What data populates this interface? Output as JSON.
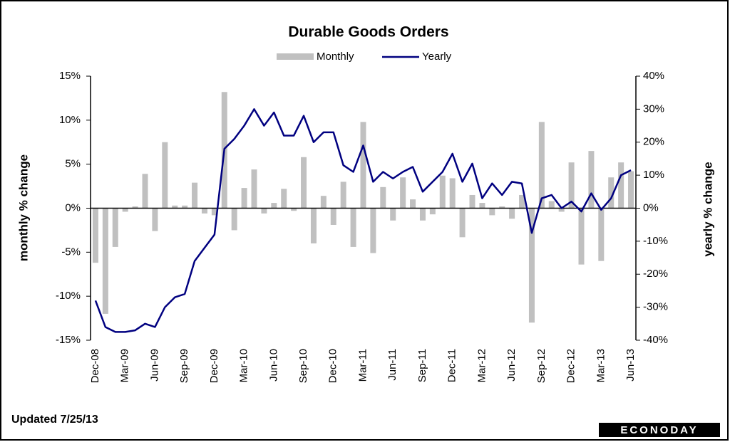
{
  "chart_data": {
    "type": "bar_line",
    "title": "Durable Goods Orders",
    "ylabel": "monthly % change",
    "y2label": "yearly % change",
    "note": "Updated 7/25/13",
    "logo": "ECONODAY",
    "categories": [
      "Dec-08",
      null,
      null,
      "Mar-09",
      null,
      null,
      "Jun-09",
      null,
      null,
      "Sep-09",
      null,
      null,
      "Dec-09",
      null,
      null,
      "Mar-10",
      null,
      null,
      "Jun-10",
      null,
      null,
      "Sep-10",
      null,
      null,
      "Dec-10",
      null,
      null,
      "Mar-11",
      null,
      null,
      "Jun-11",
      null,
      null,
      "Sep-11",
      null,
      null,
      "Dec-11",
      null,
      null,
      "Mar-12",
      null,
      null,
      "Jun-12",
      null,
      null,
      "Sep-12",
      null,
      null,
      "Dec-12",
      null,
      null,
      "Mar-13",
      null,
      null,
      "Jun-13"
    ],
    "series": [
      {
        "name": "Monthly",
        "type": "bar",
        "color": "#c0c0c0",
        "values": [
          -6.2,
          -12.0,
          -4.4,
          -0.4,
          0.2,
          3.9,
          -2.6,
          7.5,
          0.3,
          0.3,
          2.9,
          -0.6,
          -0.8,
          13.2,
          -2.5,
          2.3,
          4.4,
          -0.6,
          0.6,
          2.2,
          -0.3,
          5.8,
          -4.0,
          1.4,
          -1.9,
          3.0,
          -4.4,
          9.8,
          -5.1,
          2.4,
          -1.4,
          3.5,
          1.0,
          -1.4,
          -0.7,
          3.7,
          3.4,
          -3.3,
          1.5,
          0.6,
          -0.8,
          0.2,
          -1.2,
          1.5,
          -13.0,
          9.8,
          0.8,
          -0.4,
          5.2,
          -6.4,
          6.5,
          -6.0,
          3.5,
          5.2,
          4.2
        ]
      },
      {
        "name": "Yearly",
        "type": "line",
        "axis": "y2",
        "color": "#000080",
        "values": [
          -28,
          -36,
          -37.5,
          -37.5,
          -37,
          -35,
          -36,
          -30,
          -27,
          -26,
          -16,
          -12,
          -8,
          18,
          21,
          25,
          30,
          25,
          29,
          22,
          22,
          28,
          20,
          23,
          23,
          13,
          11,
          19,
          8,
          11,
          9,
          11,
          12.5,
          5,
          8,
          11,
          16.5,
          8,
          13.5,
          3,
          7.5,
          4,
          8,
          7.5,
          -7.5,
          3,
          4,
          0,
          2,
          -1,
          4.5,
          -0.5,
          3,
          10,
          11.5
        ]
      }
    ],
    "ylim": [
      -15,
      15
    ],
    "yticks": [
      {
        "value": -15,
        "label": "-15%"
      },
      {
        "value": -10,
        "label": "-10%"
      },
      {
        "value": -5,
        "label": "-5%"
      },
      {
        "value": 0,
        "label": "0%"
      },
      {
        "value": 5,
        "label": "5%"
      },
      {
        "value": 10,
        "label": "10%"
      },
      {
        "value": 15,
        "label": "15%"
      }
    ],
    "y2lim": [
      -40,
      40
    ],
    "y2ticks": [
      {
        "value": -40,
        "label": "-40%"
      },
      {
        "value": -30,
        "label": "-30%"
      },
      {
        "value": -20,
        "label": "-20%"
      },
      {
        "value": -10,
        "label": "-10%"
      },
      {
        "value": 0,
        "label": "0%"
      },
      {
        "value": 10,
        "label": "10%"
      },
      {
        "value": 20,
        "label": "20%"
      },
      {
        "value": 30,
        "label": "30%"
      },
      {
        "value": 40,
        "label": "40%"
      }
    ]
  }
}
